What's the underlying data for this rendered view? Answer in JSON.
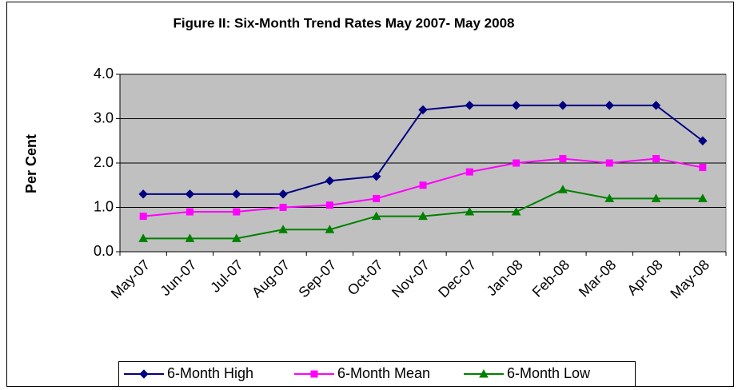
{
  "chart_data": {
    "type": "line",
    "title": "Figure II: Six-Month Trend Rates May 2007- May 2008",
    "y_label": "Per Cent",
    "categories": [
      "May-07",
      "Jun-07",
      "Jul-07",
      "Aug-07",
      "Sep-07",
      "Oct-07",
      "Nov-07",
      "Dec-07",
      "Jan-08",
      "Feb-08",
      "Mar-08",
      "Apr-08",
      "May-08"
    ],
    "series": [
      {
        "name": "6-Month High",
        "color": "#000080",
        "marker": "diamond",
        "values": [
          1.3,
          1.3,
          1.3,
          1.3,
          1.6,
          1.7,
          3.2,
          3.3,
          3.3,
          3.3,
          3.3,
          3.3,
          2.5
        ]
      },
      {
        "name": "6-Month Mean",
        "color": "#ff00ff",
        "marker": "square",
        "values": [
          0.8,
          0.9,
          0.9,
          1.0,
          1.05,
          1.2,
          1.5,
          1.8,
          2.0,
          2.1,
          2.0,
          2.1,
          1.9
        ]
      },
      {
        "name": "6-Month Low",
        "color": "#008000",
        "marker": "triangle",
        "values": [
          0.3,
          0.3,
          0.3,
          0.5,
          0.5,
          0.8,
          0.8,
          0.9,
          0.9,
          1.4,
          1.2,
          1.2,
          1.2
        ]
      }
    ],
    "ylim": [
      0,
      4
    ],
    "yticks": [
      {
        "value": 0,
        "label": "0.0"
      },
      {
        "value": 1,
        "label": "1.0"
      },
      {
        "value": 2,
        "label": "2.0"
      },
      {
        "value": 3,
        "label": "3.0"
      },
      {
        "value": 4,
        "label": "4.0"
      }
    ],
    "grid": true,
    "plot_background": "#c0c0c0",
    "legend": "bottom"
  }
}
